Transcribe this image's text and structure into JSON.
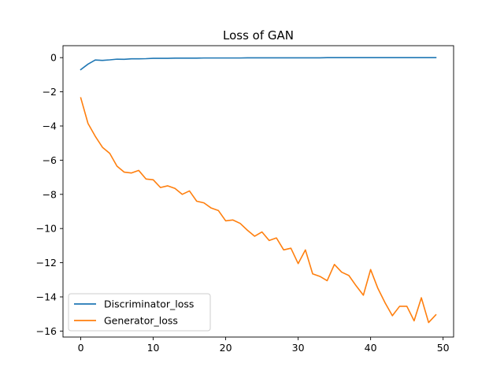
{
  "chart_data": {
    "type": "line",
    "title": "Loss of GAN",
    "xlabel": "",
    "ylabel": "",
    "xlim": [
      -2.45,
      51.45
    ],
    "ylim": [
      -16.35,
      0.7
    ],
    "xticks": [
      0,
      10,
      20,
      30,
      40,
      50
    ],
    "yticks": [
      0,
      -2,
      -4,
      -6,
      -8,
      -10,
      -12,
      -14,
      -16
    ],
    "grid": false,
    "legend_position": "lower-left",
    "x": [
      0,
      1,
      2,
      3,
      4,
      5,
      6,
      7,
      8,
      9,
      10,
      11,
      12,
      13,
      14,
      15,
      16,
      17,
      18,
      19,
      20,
      21,
      22,
      23,
      24,
      25,
      26,
      27,
      28,
      29,
      30,
      31,
      32,
      33,
      34,
      35,
      36,
      37,
      38,
      39,
      40,
      41,
      42,
      43,
      44,
      45,
      46,
      47,
      48,
      49
    ],
    "series": [
      {
        "name": "Discriminator_loss",
        "color": "#1f77b4",
        "values": [
          -0.7,
          -0.38,
          -0.14,
          -0.16,
          -0.13,
          -0.09,
          -0.1,
          -0.07,
          -0.07,
          -0.06,
          -0.04,
          -0.04,
          -0.04,
          -0.03,
          -0.03,
          -0.03,
          -0.03,
          -0.02,
          -0.02,
          -0.02,
          -0.02,
          -0.02,
          -0.02,
          -0.01,
          -0.01,
          -0.01,
          -0.01,
          -0.01,
          -0.01,
          -0.01,
          -0.01,
          -0.01,
          -0.01,
          -0.01,
          0.0,
          0.0,
          0.0,
          0.0,
          0.0,
          0.0,
          0.0,
          0.0,
          0.0,
          0.0,
          0.0,
          0.0,
          0.0,
          0.0,
          0.0,
          0.0
        ]
      },
      {
        "name": "Generator_loss",
        "color": "#ff7f0e",
        "values": [
          -2.35,
          -3.85,
          -4.6,
          -5.25,
          -5.6,
          -6.35,
          -6.7,
          -6.75,
          -6.6,
          -7.1,
          -7.15,
          -7.6,
          -7.5,
          -7.65,
          -8.0,
          -7.8,
          -8.4,
          -8.5,
          -8.8,
          -8.95,
          -9.55,
          -9.5,
          -9.7,
          -10.1,
          -10.45,
          -10.2,
          -10.7,
          -10.55,
          -11.25,
          -11.15,
          -12.05,
          -11.25,
          -12.65,
          -12.8,
          -13.05,
          -12.1,
          -12.55,
          -12.75,
          -13.35,
          -13.9,
          -12.4,
          -13.5,
          -14.35,
          -15.1,
          -14.55,
          -14.55,
          -15.4,
          -14.05,
          -15.5,
          -15.05
        ]
      }
    ]
  }
}
